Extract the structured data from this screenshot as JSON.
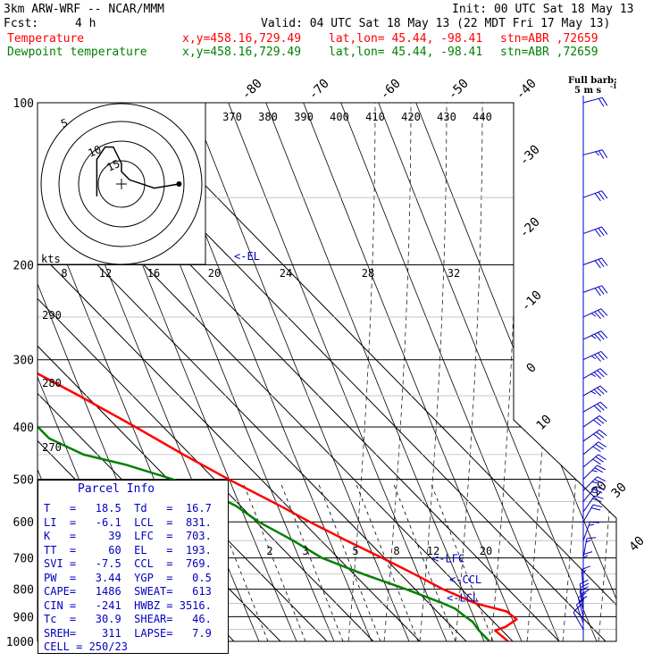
{
  "header": {
    "model": "3km ARW-WRF -- NCAR/MMM",
    "init": "Init: 00 UTC Sat 18 May 13",
    "fcst_label": "Fcst:",
    "fcst_value": "4 h",
    "valid": "Valid: 04 UTC Sat 18 May 13 (22 MDT Fri 17 May 13)",
    "temperature": {
      "name": "Temperature",
      "xy": "x,y=458.16,729.49",
      "latlon": "lat,lon= 45.44, -98.41",
      "stn": "stn=ABR ,72659",
      "color": "#ff0000"
    },
    "dewpoint": {
      "name": "Dewpoint temperature",
      "xy": "x,y=458.16,729.49",
      "latlon": "lat,lon= 45.44, -98.41",
      "stn": "stn=ABR ,72659",
      "color": "#008000"
    },
    "barb_legend": "Full barb:",
    "barb_unit": "5 m s",
    "barb_unit_exp": "-1"
  },
  "parcel_info": {
    "title": "Parcel Info",
    "rows": [
      [
        "T",
        "18.5",
        "Td",
        "16.7"
      ],
      [
        "LI",
        "-6.1",
        "LCL",
        "831."
      ],
      [
        "K",
        "39",
        "LFC",
        "703."
      ],
      [
        "TT",
        "60",
        "EL",
        "193."
      ],
      [
        "SVI",
        "-7.5",
        "CCL",
        "769."
      ],
      [
        "PW",
        "3.44",
        "YGP",
        "0.5"
      ],
      [
        "CAPE",
        "1486",
        "SWEAT",
        "613"
      ],
      [
        "CIN",
        "-241",
        "HWBZ",
        "3516."
      ],
      [
        "Tc",
        "30.9",
        "SHEAR",
        "46."
      ],
      [
        "SREH",
        "311",
        "LAPSE",
        "7.9"
      ]
    ],
    "cell": "CELL = 250/23"
  },
  "chart_data": {
    "type": "line",
    "diagram": "skew-T log-p",
    "y_axis_pressure_levels": [
      "100",
      "200",
      "300",
      "400",
      "500",
      "600",
      "700",
      "800",
      "900",
      "1000"
    ],
    "isotherm_labels_top": [
      "-80",
      "-70",
      "-60",
      "-50",
      "-40"
    ],
    "isotherm_labels_right": [
      "-30",
      "-20",
      "-10",
      "0",
      "10",
      "20",
      "30",
      "40"
    ],
    "theta_e_labels": [
      "370",
      "380",
      "390",
      "400",
      "410",
      "420",
      "430",
      "440"
    ],
    "theta_labels_left": [
      "290",
      "280",
      "270"
    ],
    "mixing_ratio_labels": [
      "2",
      "3",
      "5",
      "8",
      "12",
      "20"
    ],
    "hodo_ring_labels": [
      "5",
      "10",
      "15"
    ],
    "hodo_speed_labels": [
      "8",
      "12",
      "16",
      "20",
      "24",
      "28",
      "32"
    ],
    "hodo_units": "kts",
    "levels": {
      "el": {
        "label": "<-EL",
        "pressure": 193
      },
      "lfc": {
        "label": "<-LFC",
        "pressure": 703
      },
      "ccl": {
        "label": "<-CCL",
        "pressure": 769
      },
      "lcl": {
        "label": "<-LCL",
        "pressure": 831
      }
    },
    "series": [
      {
        "name": "Temperature",
        "color": "#ff0000",
        "points": [
          [
            1000,
            19.0
          ],
          [
            955,
            18.5
          ],
          [
            940,
            21.5
          ],
          [
            910,
            25.5
          ],
          [
            880,
            25.0
          ],
          [
            850,
            20.0
          ],
          [
            800,
            16.0
          ],
          [
            750,
            13.0
          ],
          [
            700,
            9.5
          ],
          [
            650,
            5.5
          ],
          [
            600,
            1.5
          ],
          [
            560,
            -1.5
          ],
          [
            500,
            -7.0
          ],
          [
            450,
            -11.5
          ],
          [
            400,
            -16.0
          ],
          [
            350,
            -21.5
          ],
          [
            300,
            -28.5
          ],
          [
            260,
            -35.5
          ],
          [
            220,
            -44.0
          ],
          [
            205,
            -48.5
          ],
          [
            195,
            -51.0
          ],
          [
            180,
            -51.5
          ],
          [
            160,
            -50.0
          ],
          [
            140,
            -52.5
          ],
          [
            120,
            -54.5
          ],
          [
            100,
            -57.0
          ]
        ]
      },
      {
        "name": "Dewpoint temperature",
        "color": "#008000",
        "points": [
          [
            1000,
            15.0
          ],
          [
            955,
            15.0
          ],
          [
            920,
            15.5
          ],
          [
            900,
            15.0
          ],
          [
            870,
            14.5
          ],
          [
            850,
            13.0
          ],
          [
            800,
            8.0
          ],
          [
            750,
            2.0
          ],
          [
            700,
            -3.5
          ],
          [
            650,
            -6.0
          ],
          [
            600,
            -9.5
          ],
          [
            560,
            -11.0
          ],
          [
            520,
            -15.0
          ],
          [
            500,
            -19.0
          ],
          [
            470,
            -26.0
          ],
          [
            450,
            -33.0
          ],
          [
            420,
            -37.0
          ],
          [
            400,
            -37.0
          ],
          [
            370,
            -36.0
          ],
          [
            350,
            -36.0
          ],
          [
            300,
            -43.0
          ],
          [
            250,
            -54.0
          ],
          [
            210,
            -65.0
          ],
          [
            195,
            -68.0
          ],
          [
            180,
            -67.0
          ],
          [
            160,
            -66.0
          ],
          [
            140,
            -68.0
          ],
          [
            120,
            -71.0
          ],
          [
            100,
            -74.0
          ]
        ]
      }
    ],
    "hodograph": {
      "units": "kts",
      "points": [
        [
          -6,
          -3
        ],
        [
          -6,
          6
        ],
        [
          -4,
          9
        ],
        [
          -2,
          9
        ],
        [
          -1,
          7
        ],
        [
          0,
          5
        ],
        [
          0,
          3
        ],
        [
          2,
          1
        ],
        [
          8,
          -1
        ],
        [
          14,
          0
        ]
      ]
    },
    "wind_barbs": [
      {
        "p": 100,
        "dir": 255,
        "spd": 20
      },
      {
        "p": 125,
        "dir": 255,
        "spd": 25
      },
      {
        "p": 150,
        "dir": 250,
        "spd": 30
      },
      {
        "p": 175,
        "dir": 250,
        "spd": 30
      },
      {
        "p": 200,
        "dir": 250,
        "spd": 30
      },
      {
        "p": 225,
        "dir": 250,
        "spd": 30
      },
      {
        "p": 250,
        "dir": 245,
        "spd": 35
      },
      {
        "p": 275,
        "dir": 245,
        "spd": 35
      },
      {
        "p": 300,
        "dir": 245,
        "spd": 35
      },
      {
        "p": 325,
        "dir": 240,
        "spd": 35
      },
      {
        "p": 350,
        "dir": 240,
        "spd": 35
      },
      {
        "p": 375,
        "dir": 240,
        "spd": 30
      },
      {
        "p": 400,
        "dir": 235,
        "spd": 30
      },
      {
        "p": 425,
        "dir": 235,
        "spd": 30
      },
      {
        "p": 450,
        "dir": 230,
        "spd": 30
      },
      {
        "p": 475,
        "dir": 230,
        "spd": 30
      },
      {
        "p": 500,
        "dir": 225,
        "spd": 25
      },
      {
        "p": 525,
        "dir": 225,
        "spd": 25
      },
      {
        "p": 550,
        "dir": 220,
        "spd": 25
      },
      {
        "p": 575,
        "dir": 215,
        "spd": 20
      },
      {
        "p": 600,
        "dir": 210,
        "spd": 20
      },
      {
        "p": 650,
        "dir": 200,
        "spd": 15
      },
      {
        "p": 700,
        "dir": 190,
        "spd": 15
      },
      {
        "p": 750,
        "dir": 180,
        "spd": 15
      },
      {
        "p": 800,
        "dir": 175,
        "spd": 15
      },
      {
        "p": 850,
        "dir": 170,
        "spd": 20
      },
      {
        "p": 875,
        "dir": 170,
        "spd": 20
      },
      {
        "p": 900,
        "dir": 165,
        "spd": 20
      },
      {
        "p": 925,
        "dir": 160,
        "spd": 15
      },
      {
        "p": 950,
        "dir": 150,
        "spd": 10
      }
    ],
    "grid": true
  }
}
